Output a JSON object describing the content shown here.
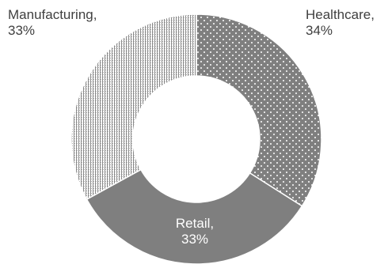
{
  "chart_data": {
    "type": "pie",
    "variant": "donut",
    "categories": [
      "Healthcare",
      "Retail",
      "Manufacturing"
    ],
    "values": [
      34,
      33,
      33
    ],
    "unit": "%",
    "colors": [
      "#7f7f7f",
      "#7f7f7f",
      "#ffffff"
    ],
    "patterns": [
      "dots",
      "solid",
      "vertical-lines"
    ],
    "labels": [
      {
        "line1": "Healthcare,",
        "line2": "34%"
      },
      {
        "line1": "Retail,",
        "line2": "33%"
      },
      {
        "line1": "Manufacturing,",
        "line2": "33%"
      }
    ],
    "legend": "none"
  }
}
